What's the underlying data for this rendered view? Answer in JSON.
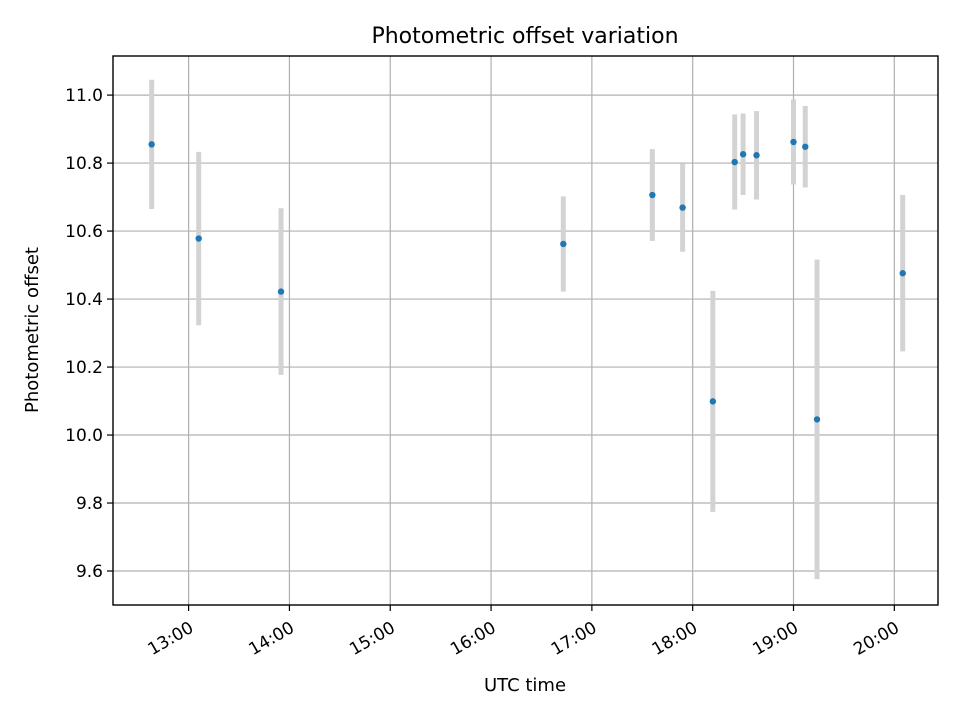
{
  "chart_data": {
    "type": "scatter",
    "title": "Photometric offset variation",
    "xlabel": "UTC time",
    "ylabel": "Photometric offset",
    "xlim": [
      "12:15",
      "20:26"
    ],
    "ylim": [
      9.5,
      11.115
    ],
    "x_ticks": [
      "13:00",
      "14:00",
      "15:00",
      "16:00",
      "17:00",
      "18:00",
      "19:00",
      "20:00"
    ],
    "y_ticks": [
      "9.6",
      "9.8",
      "10.0",
      "10.2",
      "10.4",
      "10.6",
      "10.8",
      "11.0"
    ],
    "grid": true,
    "colors": {
      "marker": "#1f77b4",
      "errorbar": "#d3d3d3"
    },
    "points": [
      {
        "x": "12:38",
        "y": 10.855,
        "err": 0.19
      },
      {
        "x": "13:06",
        "y": 10.578,
        "err": 0.255
      },
      {
        "x": "13:55",
        "y": 10.422,
        "err": 0.245
      },
      {
        "x": "16:43",
        "y": 10.562,
        "err": 0.14
      },
      {
        "x": "17:36",
        "y": 10.706,
        "err": 0.135
      },
      {
        "x": "17:54",
        "y": 10.669,
        "err": 0.13
      },
      {
        "x": "18:12",
        "y": 10.099,
        "err": 0.325
      },
      {
        "x": "18:25",
        "y": 10.803,
        "err": 0.14
      },
      {
        "x": "18:30",
        "y": 10.826,
        "err": 0.12
      },
      {
        "x": "18:38",
        "y": 10.823,
        "err": 0.13
      },
      {
        "x": "19:00",
        "y": 10.862,
        "err": 0.125
      },
      {
        "x": "19:07",
        "y": 10.848,
        "err": 0.12
      },
      {
        "x": "19:14",
        "y": 10.046,
        "err": 0.47
      },
      {
        "x": "20:05",
        "y": 10.476,
        "err": 0.23
      }
    ]
  }
}
